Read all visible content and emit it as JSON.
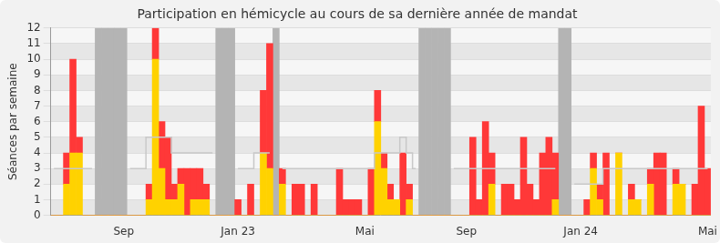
{
  "chart_data": {
    "type": "bar",
    "title": "Participation en hémicycle au cours de sa dernière année de mandat",
    "y_label": "Séances par semaine",
    "categories": [
      null,
      null,
      null,
      null,
      null,
      null,
      null,
      null,
      null,
      null,
      null,
      "Sep",
      null,
      null,
      null,
      null,
      null,
      null,
      null,
      null,
      null,
      null,
      null,
      null,
      null,
      null,
      null,
      null,
      null,
      "Jan 23",
      null,
      null,
      null,
      null,
      null,
      null,
      null,
      null,
      null,
      null,
      null,
      null,
      null,
      null,
      null,
      null,
      null,
      null,
      null,
      "Mai",
      null,
      null,
      null,
      null,
      null,
      null,
      null,
      null,
      null,
      null,
      null,
      null,
      null,
      null,
      null,
      "Sep",
      null,
      null,
      null,
      null,
      null,
      null,
      null,
      null,
      null,
      null,
      null,
      null,
      null,
      null,
      null,
      null,
      null,
      "Jan 24",
      null,
      null,
      null,
      null,
      null,
      null,
      null,
      null,
      null,
      null,
      null,
      null,
      null,
      null,
      null,
      null,
      null,
      null,
      null,
      "Mai"
    ],
    "stacked": true,
    "grid": true,
    "ylim": [
      0,
      12
    ],
    "yticks": [
      0,
      1,
      2,
      3,
      4,
      5,
      6,
      7,
      8,
      9,
      10,
      11,
      12
    ],
    "series": [
      {
        "color": "#ffd200",
        "values": [
          0,
          0,
          2,
          4,
          4,
          0,
          0,
          0,
          0,
          0,
          0,
          0,
          0,
          0,
          0,
          1,
          10,
          3,
          1,
          1,
          2,
          0,
          1,
          1,
          1,
          0,
          0,
          0,
          0,
          0,
          0,
          0,
          0,
          4,
          3,
          0,
          2,
          0,
          0,
          0,
          0,
          0,
          0,
          0,
          0,
          0,
          0,
          0,
          0,
          0,
          0,
          6,
          3,
          1,
          1,
          0,
          1,
          0,
          0,
          0,
          0,
          0,
          0,
          0,
          0,
          0,
          0,
          0,
          0,
          2,
          0,
          0,
          0,
          0,
          0,
          0,
          0,
          0,
          0,
          1,
          0,
          0,
          0,
          0,
          0,
          3,
          1,
          0,
          0,
          4,
          0,
          1,
          1,
          0,
          2,
          0,
          0,
          0,
          2,
          2,
          0,
          0,
          0,
          0
        ]
      },
      {
        "color": "#ff3838",
        "values": [
          0,
          0,
          2,
          6,
          1,
          0,
          0,
          0,
          0,
          0,
          0,
          0,
          0,
          0,
          0,
          1,
          2,
          3,
          4,
          1,
          1,
          3,
          2,
          2,
          1,
          0,
          0,
          0,
          0,
          1,
          0,
          2,
          0,
          4,
          8,
          0,
          1,
          0,
          2,
          2,
          0,
          2,
          0,
          0,
          0,
          3,
          1,
          1,
          1,
          0,
          3,
          2,
          1,
          1,
          0,
          4,
          1,
          0,
          0,
          0,
          0,
          0,
          0,
          0,
          0,
          0,
          5,
          1,
          6,
          2,
          0,
          2,
          2,
          1,
          5,
          2,
          1,
          4,
          5,
          3,
          0,
          0,
          0,
          0,
          1,
          1,
          1,
          4,
          0,
          0,
          0,
          1,
          0,
          0,
          1,
          4,
          4,
          0,
          1,
          0,
          0,
          2,
          7,
          3
        ]
      },
      {
        "type": "band",
        "color": "#b4b4b4",
        "values": [
          null,
          null,
          null,
          null,
          null,
          null,
          null,
          12,
          12,
          12,
          12,
          12,
          null,
          null,
          null,
          null,
          null,
          null,
          null,
          null,
          null,
          null,
          null,
          null,
          null,
          null,
          12,
          12,
          12,
          null,
          null,
          null,
          null,
          null,
          null,
          12,
          null,
          null,
          null,
          null,
          null,
          null,
          null,
          null,
          null,
          null,
          null,
          null,
          null,
          null,
          null,
          null,
          null,
          null,
          null,
          null,
          null,
          null,
          12,
          12,
          12,
          12,
          12,
          null,
          null,
          null,
          null,
          null,
          null,
          null,
          null,
          null,
          null,
          null,
          null,
          null,
          null,
          null,
          null,
          null,
          12,
          12,
          null,
          null,
          null,
          null,
          null,
          null,
          null,
          null,
          null,
          null,
          null,
          null,
          null,
          null,
          null,
          null,
          null,
          null,
          null,
          null,
          null,
          null
        ]
      },
      {
        "type": "line",
        "line_style": "solid",
        "color": "#c8c8c8",
        "values": [
          3,
          3,
          3,
          3,
          3,
          3,
          3,
          null,
          null,
          null,
          null,
          null,
          3,
          3,
          3,
          5,
          5,
          5,
          5,
          4,
          4,
          4,
          4,
          4,
          4,
          4,
          null,
          null,
          null,
          3,
          3,
          3,
          4,
          4,
          4,
          null,
          3,
          3,
          3,
          3,
          3,
          3,
          3,
          3,
          3,
          3,
          3,
          3,
          3,
          3,
          3,
          4,
          4,
          4,
          4,
          5,
          4,
          3,
          null,
          null,
          null,
          null,
          null,
          3,
          3,
          3,
          3,
          3,
          3,
          3,
          3,
          3,
          3,
          3,
          3,
          3,
          3,
          3,
          3,
          3,
          null,
          null,
          2,
          2,
          2,
          2,
          2,
          3,
          3,
          3,
          3,
          3,
          3,
          3,
          3,
          3,
          3,
          3,
          3,
          3,
          3,
          3,
          3,
          3
        ]
      }
    ]
  }
}
